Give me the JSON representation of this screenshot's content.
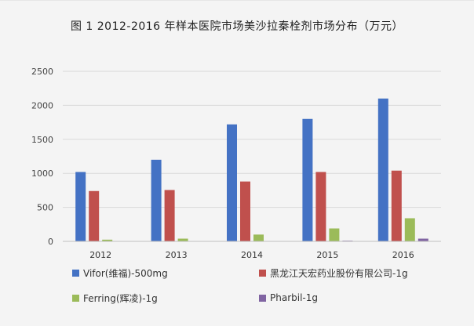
{
  "title": "图 1 2012-2016 年样本医院市场美沙拉秦栓剂市场分布（万元）",
  "chart_data": {
    "type": "bar",
    "title": "图 1 2012-2016 年样本医院市场美沙拉秦栓剂市场分布（万元）",
    "xlabel": "",
    "ylabel": "",
    "categories": [
      "2012",
      "2013",
      "2014",
      "2015",
      "2016"
    ],
    "ylim": [
      0,
      2500
    ],
    "yticks": [
      0,
      500,
      1000,
      1500,
      2000,
      2500
    ],
    "grid": true,
    "legend_position": "bottom",
    "series": [
      {
        "name": "Vifor(维福)-500mg",
        "color": "#4472c4",
        "values": [
          1020,
          1200,
          1720,
          1800,
          2100
        ]
      },
      {
        "name": "黑龙江天宏药业股份有限公司-1g",
        "color": "#c0504d",
        "values": [
          740,
          755,
          880,
          1020,
          1040
        ]
      },
      {
        "name": "Ferring(辉凌)-1g",
        "color": "#9bbb59",
        "values": [
          25,
          40,
          100,
          190,
          340
        ]
      },
      {
        "name": "Pharbil-1g",
        "color": "#8064a2",
        "values": [
          0,
          0,
          0,
          10,
          40
        ]
      }
    ]
  }
}
